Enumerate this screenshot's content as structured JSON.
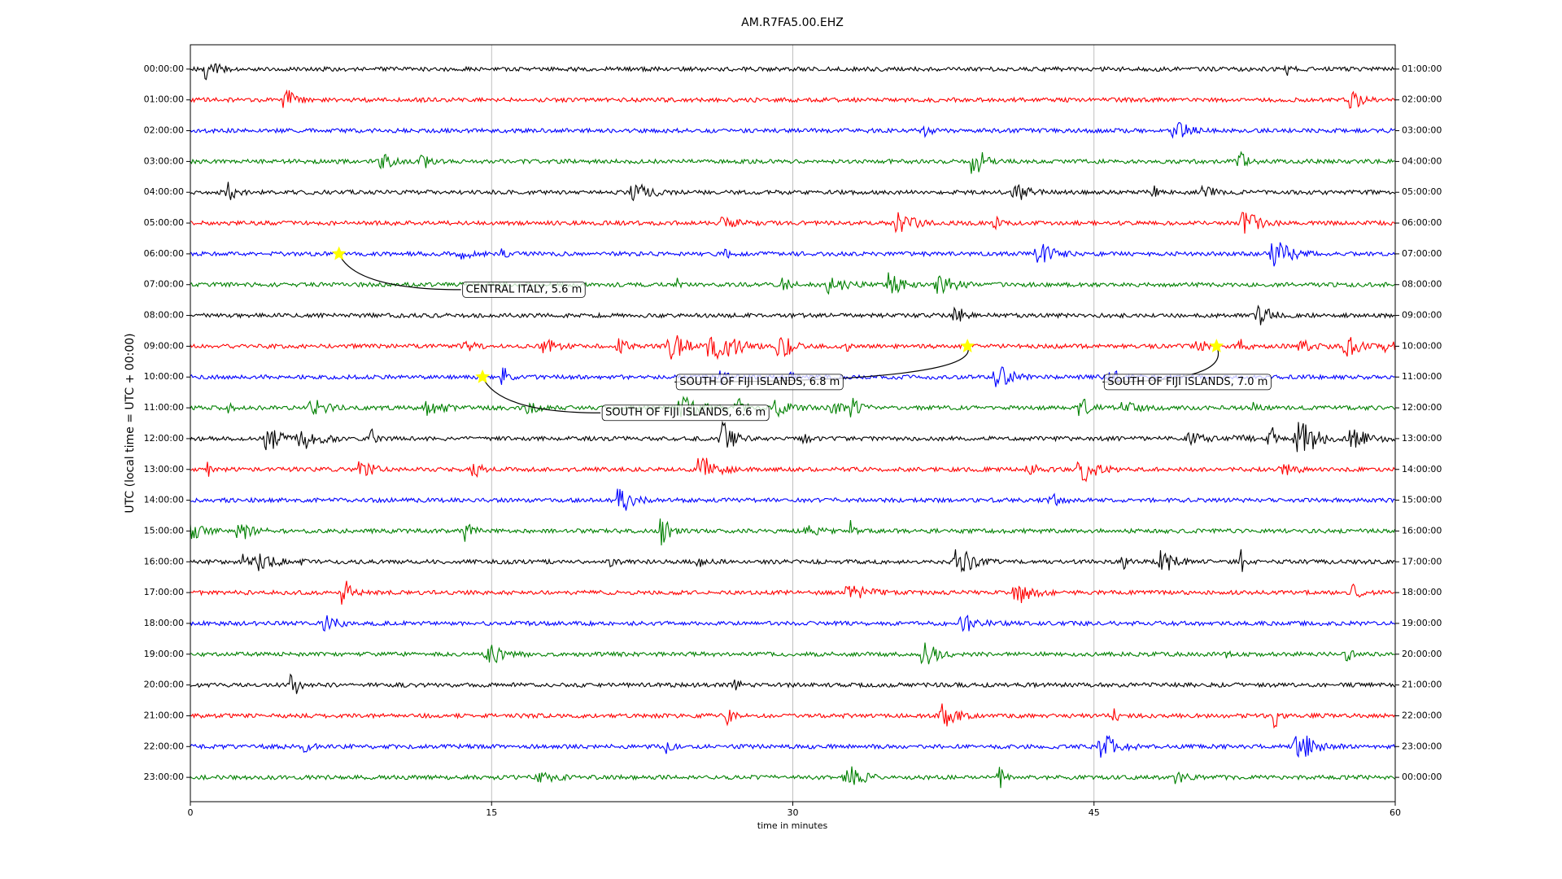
{
  "chart_data": {
    "type": "dayplot",
    "title": "AM.R7FA5.00.EHZ",
    "x_label": "time in minutes",
    "y_label": "UTC (local time = UTC + 00:00)",
    "xlim": [
      0,
      60
    ],
    "xticks": [
      0,
      15,
      30,
      45,
      60
    ],
    "grid": true,
    "colors": [
      "#000000",
      "#ff0000",
      "#0000ff",
      "#008000"
    ],
    "row_labels": [
      "00:00:00",
      "01:00:00",
      "02:00:00",
      "03:00:00",
      "04:00:00",
      "05:00:00",
      "06:00:00",
      "07:00:00",
      "08:00:00",
      "09:00:00",
      "10:00:00",
      "11:00:00",
      "12:00:00",
      "13:00:00",
      "14:00:00",
      "15:00:00",
      "16:00:00",
      "17:00:00",
      "18:00:00",
      "19:00:00",
      "20:00:00",
      "21:00:00",
      "22:00:00",
      "23:00:00"
    ],
    "right_labels": [
      "01:00:00",
      "02:00:00",
      "03:00:00",
      "04:00:00",
      "05:00:00",
      "06:00:00",
      "07:00:00",
      "08:00:00",
      "09:00:00",
      "10:00:00",
      "11:00:00",
      "12:00:00",
      "13:00:00",
      "14:00:00",
      "15:00:00",
      "16:00:00",
      "17:00:00",
      "18:00:00",
      "19:00:00",
      "20:00:00",
      "21:00:00",
      "22:00:00",
      "23:00:00",
      "00:00:00"
    ],
    "events": [
      {
        "label": "CENTRAL ITALY, 5.6 m",
        "minute": 7.4,
        "row": 6
      },
      {
        "label": "SOUTH OF FIJI ISLANDS, 6.8 m",
        "minute": 38.7,
        "row": 9
      },
      {
        "label": "SOUTH OF FIJI ISLANDS, 7.0 m",
        "minute": 51.1,
        "row": 9
      },
      {
        "label": "SOUTH OF FIJI ISLANDS, 6.6 m",
        "minute": 14.55,
        "row": 10
      }
    ]
  }
}
